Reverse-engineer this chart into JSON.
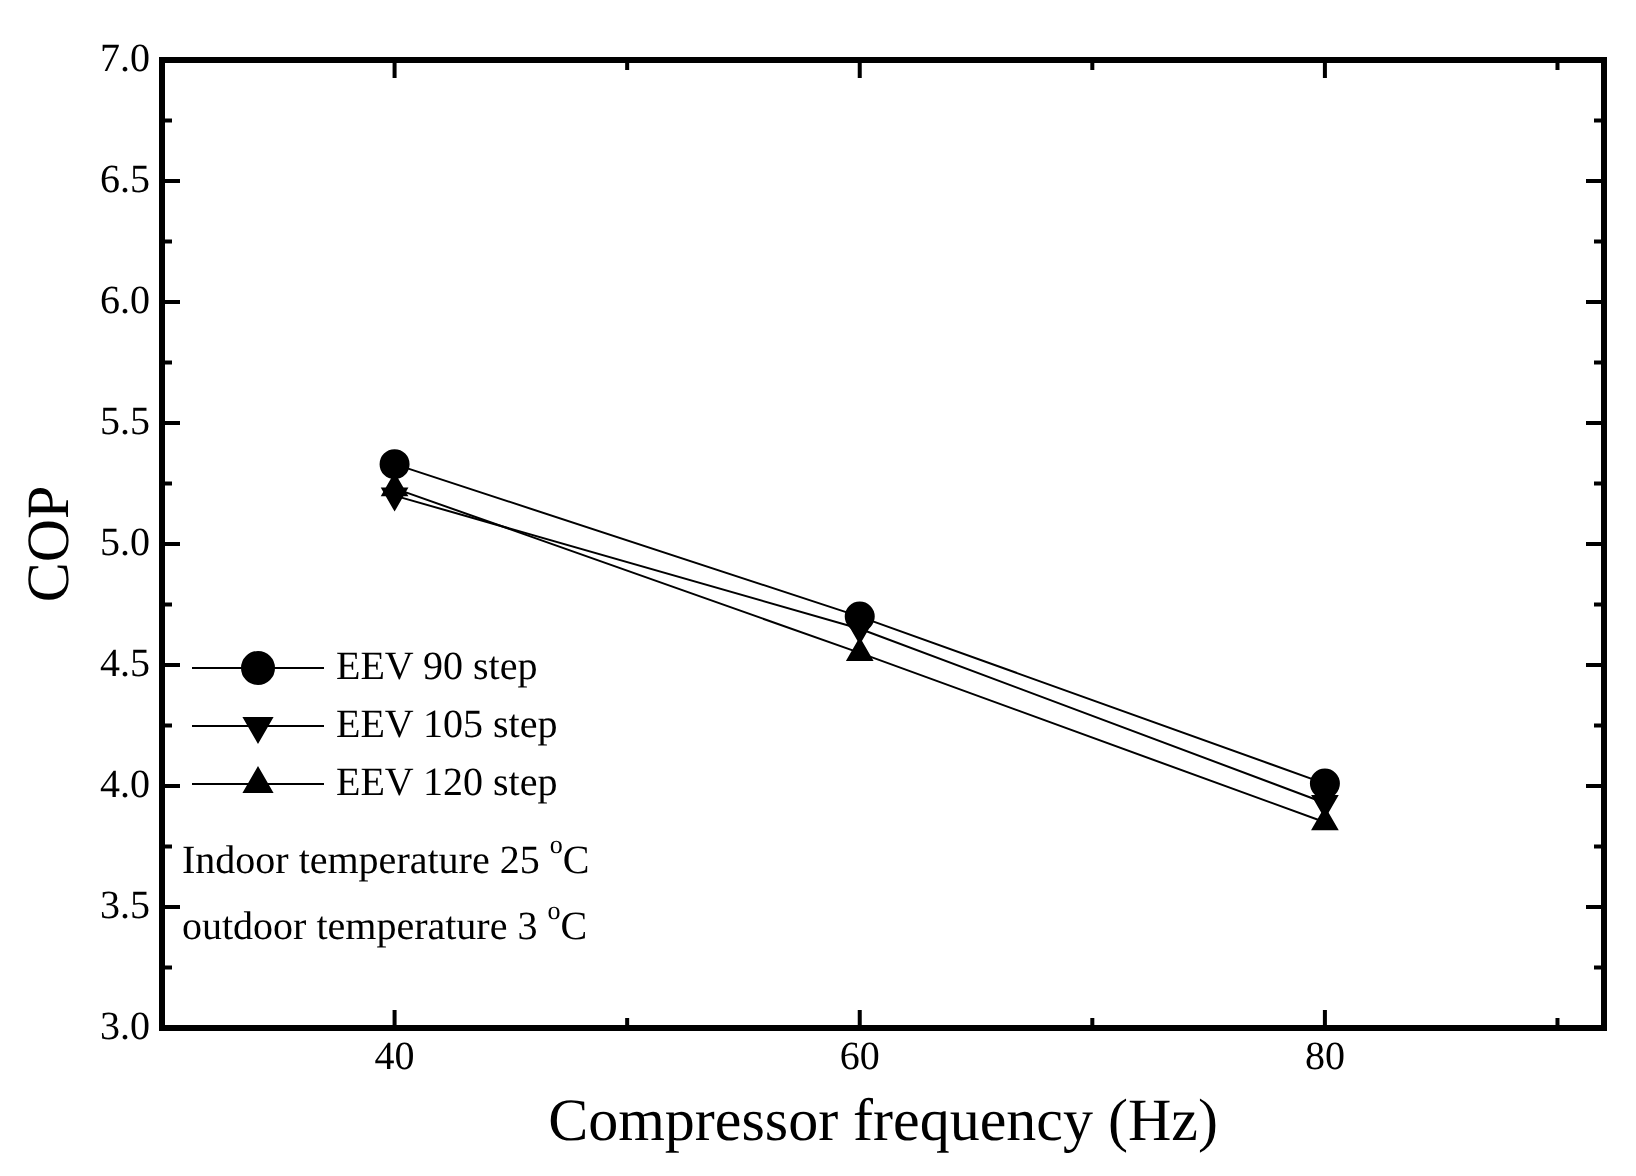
{
  "chart_data": {
    "type": "line",
    "xlabel": "Compressor frequency (Hz)",
    "ylabel": "COP",
    "x": [
      40,
      60,
      80
    ],
    "series": [
      {
        "name": "EEV 90 step",
        "color": "#000000",
        "marker": "circle",
        "values": [
          5.33,
          4.7,
          4.01
        ]
      },
      {
        "name": "EEV 105 step",
        "color": "#000000",
        "marker": "triangle-down",
        "values": [
          5.2,
          4.65,
          3.93
        ]
      },
      {
        "name": "EEV 120 step",
        "color": "#000000",
        "marker": "triangle",
        "values": [
          5.23,
          4.55,
          3.85
        ]
      }
    ],
    "xlim": [
      30,
      92
    ],
    "xticks": [
      40,
      {
        "value": 50,
        "label": null
      },
      60,
      {
        "value": 70,
        "label": null
      },
      80,
      {
        "value": 90,
        "label": null
      }
    ],
    "ylim": [
      3,
      7
    ],
    "yticks": [
      {
        "value": 3,
        "label": "3.0"
      },
      {
        "value": 3.25,
        "label": null
      },
      {
        "value": 3.5,
        "label": "3.5"
      },
      {
        "value": 3.75,
        "label": null
      },
      {
        "value": 4,
        "label": "4.0"
      },
      {
        "value": 4.25,
        "label": null
      },
      {
        "value": 4.5,
        "label": "4.5"
      },
      {
        "value": 4.75,
        "label": null
      },
      {
        "value": 5,
        "label": "5.0"
      },
      {
        "value": 5.25,
        "label": null
      },
      {
        "value": 5.5,
        "label": "5.5"
      },
      {
        "value": 5.75,
        "label": null
      },
      {
        "value": 6,
        "label": "6.0"
      },
      {
        "value": 6.25,
        "label": null
      },
      {
        "value": 6.5,
        "label": "6.5"
      },
      {
        "value": 6.75,
        "label": null
      },
      {
        "value": 7,
        "label": "7.0"
      }
    ],
    "line_style": "solid",
    "legend": "bottom left",
    "annotations": [
      "Indoor temperature 25 $^{o}$C",
      "outdoor temperature 3 $^{o}$C"
    ]
  }
}
